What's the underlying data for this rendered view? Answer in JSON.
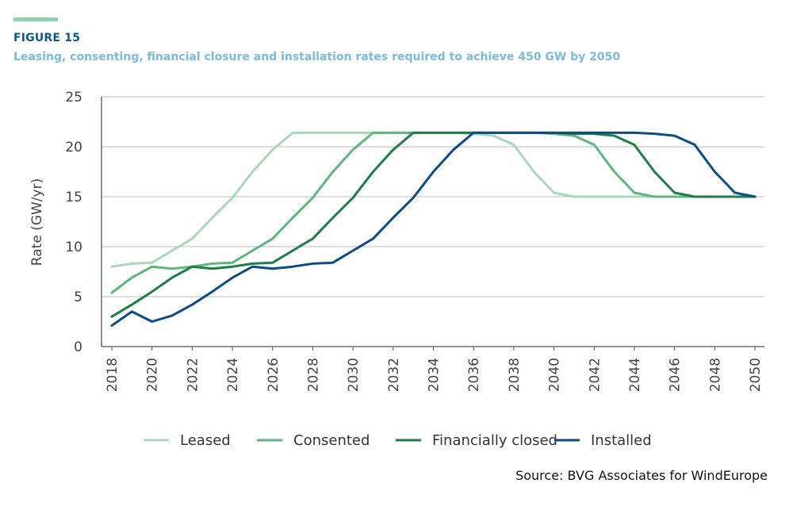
{
  "header": {
    "figure_label": "FIGURE 15",
    "title": "Leasing, consenting, financial closure and installation rates required to achieve 450 GW by 2050"
  },
  "source": "Source: BVG Associates for WindEurope",
  "colors": {
    "accent": "#8fd3ae",
    "figure_label": "#0b5a8a",
    "title": "#7cb9e0"
  },
  "chart_data": {
    "type": "line",
    "ylabel": "Rate (GW/yr)",
    "xlabel": "",
    "ylim": [
      0,
      25
    ],
    "yticks": [
      0,
      5,
      10,
      15,
      20,
      25
    ],
    "xticks": [
      "2018",
      "2020",
      "2022",
      "2024",
      "2026",
      "2028",
      "2030",
      "2032",
      "2034",
      "2036",
      "2038",
      "2040",
      "2042",
      "2044",
      "2046",
      "2048",
      "2050"
    ],
    "grid": "horizontal",
    "legend_position": "bottom",
    "x": [
      2018,
      2019,
      2020,
      2021,
      2022,
      2023,
      2024,
      2025,
      2026,
      2027,
      2028,
      2029,
      2030,
      2031,
      2032,
      2033,
      2034,
      2035,
      2036,
      2037,
      2038,
      2039,
      2040,
      2041,
      2042,
      2043,
      2044,
      2045,
      2046,
      2047,
      2048,
      2049,
      2050
    ],
    "series": [
      {
        "name": "Leased",
        "color": "#a8d8b9",
        "values": [
          8.0,
          8.3,
          8.4,
          9.6,
          10.8,
          12.9,
          14.9,
          17.5,
          19.7,
          21.4,
          21.4,
          21.4,
          21.4,
          21.4,
          21.4,
          21.4,
          21.4,
          21.4,
          21.3,
          21.1,
          20.2,
          17.5,
          15.4,
          15.0,
          15.0,
          15.0,
          15.0,
          15.0,
          15.0,
          15.0,
          15.0,
          15.0,
          15.0
        ]
      },
      {
        "name": "Consented",
        "color": "#5fb77e",
        "values": [
          5.4,
          6.9,
          8.0,
          7.8,
          8.0,
          8.3,
          8.4,
          9.6,
          10.8,
          12.9,
          14.9,
          17.5,
          19.7,
          21.4,
          21.4,
          21.4,
          21.4,
          21.4,
          21.4,
          21.4,
          21.4,
          21.4,
          21.3,
          21.1,
          20.2,
          17.5,
          15.4,
          15.0,
          15.0,
          15.0,
          15.0,
          15.0,
          15.0
        ]
      },
      {
        "name": "Financially closed",
        "color": "#1f7d46",
        "values": [
          3.0,
          4.2,
          5.5,
          6.9,
          8.0,
          7.8,
          8.0,
          8.3,
          8.4,
          9.6,
          10.8,
          12.9,
          14.9,
          17.5,
          19.7,
          21.4,
          21.4,
          21.4,
          21.4,
          21.4,
          21.4,
          21.4,
          21.4,
          21.3,
          21.3,
          21.1,
          20.2,
          17.5,
          15.4,
          15.0,
          15.0,
          15.0,
          15.0
        ]
      },
      {
        "name": "Installed",
        "color": "#0d4c84",
        "values": [
          2.1,
          3.5,
          2.5,
          3.1,
          4.2,
          5.5,
          6.9,
          8.0,
          7.8,
          8.0,
          8.3,
          8.4,
          9.6,
          10.8,
          12.9,
          14.9,
          17.5,
          19.7,
          21.4,
          21.4,
          21.4,
          21.4,
          21.4,
          21.4,
          21.4,
          21.4,
          21.4,
          21.3,
          21.1,
          20.2,
          17.5,
          15.4,
          15.0
        ]
      }
    ]
  }
}
